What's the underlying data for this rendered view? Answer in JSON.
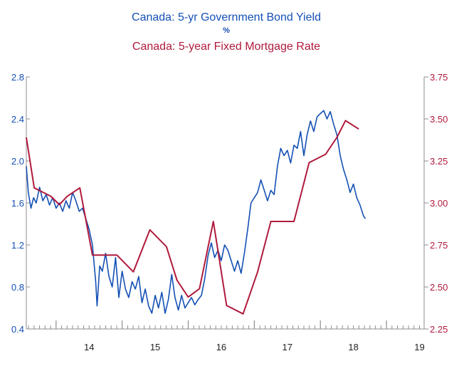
{
  "colors": {
    "bond": "#1450b4",
    "mortgage": "#b01a3c",
    "axis": "#8c8c8c",
    "x_tick_label": "#222222"
  },
  "chart_data": {
    "type": "line",
    "title": "Canada: 5-yr Government Bond Yield",
    "unit": "%",
    "subtitle": "Canada: 5-year Fixed Mortgage Rate",
    "grid": false,
    "x_axis": {
      "range": [
        2013.55,
        2019.57
      ],
      "ticks": [
        {
          "value": 2014.0,
          "label": "14"
        },
        {
          "value": 2015.0,
          "label": "15"
        },
        {
          "value": 2016.0,
          "label": "16"
        },
        {
          "value": 2017.0,
          "label": "17"
        },
        {
          "value": 2018.0,
          "label": "18"
        },
        {
          "value": 2019.0,
          "label": "19"
        }
      ],
      "year_boundaries": [
        2014,
        2015,
        2016,
        2017,
        2018,
        2019
      ]
    },
    "y_left": {
      "range": [
        0.4,
        2.8
      ],
      "ticks": [
        {
          "value": 0.4,
          "label": "0.4"
        },
        {
          "value": 0.8,
          "label": "0.8"
        },
        {
          "value": 1.2,
          "label": "1.2"
        },
        {
          "value": 1.6,
          "label": "1.6"
        },
        {
          "value": 2.0,
          "label": "2.0"
        },
        {
          "value": 2.4,
          "label": "2.4"
        },
        {
          "value": 2.8,
          "label": "2.8"
        }
      ]
    },
    "y_right": {
      "range": [
        2.25,
        3.75
      ],
      "ticks": [
        {
          "value": 2.25,
          "label": "2.25"
        },
        {
          "value": 2.5,
          "label": "2.50"
        },
        {
          "value": 2.75,
          "label": "2.75"
        },
        {
          "value": 3.0,
          "label": "3.00"
        },
        {
          "value": 3.25,
          "label": "3.25"
        },
        {
          "value": 3.5,
          "label": "3.50"
        },
        {
          "value": 3.75,
          "label": "3.75"
        }
      ]
    },
    "series": [
      {
        "name": "Canada: 5-yr Government Bond Yield",
        "axis": "left",
        "x": [
          2013.55,
          2013.58,
          2013.62,
          2013.66,
          2013.7,
          2013.75,
          2013.8,
          2013.85,
          2013.9,
          2013.95,
          2014.0,
          2014.05,
          2014.1,
          2014.15,
          2014.2,
          2014.25,
          2014.3,
          2014.35,
          2014.4,
          2014.45,
          2014.5,
          2014.55,
          2014.6,
          2014.62,
          2014.64,
          2014.66,
          2014.7,
          2014.75,
          2014.8,
          2014.85,
          2014.9,
          2014.95,
          2015.0,
          2015.05,
          2015.1,
          2015.15,
          2015.2,
          2015.25,
          2015.3,
          2015.35,
          2015.4,
          2015.45,
          2015.5,
          2015.55,
          2015.6,
          2015.65,
          2015.7,
          2015.75,
          2015.8,
          2015.85,
          2015.9,
          2015.95,
          2016.0,
          2016.05,
          2016.1,
          2016.15,
          2016.2,
          2016.25,
          2016.3,
          2016.35,
          2016.4,
          2016.45,
          2016.5,
          2016.55,
          2016.6,
          2016.65,
          2016.7,
          2016.75,
          2016.8,
          2016.85,
          2016.9,
          2016.95,
          2017.0,
          2017.05,
          2017.1,
          2017.15,
          2017.2,
          2017.25,
          2017.3,
          2017.35,
          2017.4,
          2017.45,
          2017.5,
          2017.55,
          2017.6,
          2017.65,
          2017.7,
          2017.75,
          2017.8,
          2017.85,
          2017.9,
          2017.95,
          2018.0,
          2018.05,
          2018.1,
          2018.15,
          2018.2,
          2018.25,
          2018.3,
          2018.35,
          2018.4,
          2018.45,
          2018.5,
          2018.55,
          2018.6,
          2018.65,
          2018.68
        ],
        "values": [
          1.95,
          1.7,
          1.55,
          1.65,
          1.6,
          1.75,
          1.62,
          1.68,
          1.58,
          1.65,
          1.55,
          1.6,
          1.52,
          1.62,
          1.55,
          1.7,
          1.62,
          1.52,
          1.55,
          1.45,
          1.35,
          1.2,
          0.85,
          0.62,
          0.8,
          1.0,
          0.95,
          1.12,
          0.9,
          0.8,
          1.08,
          0.7,
          0.95,
          0.78,
          0.7,
          0.85,
          0.78,
          0.9,
          0.65,
          0.78,
          0.62,
          0.55,
          0.72,
          0.6,
          0.75,
          0.55,
          0.68,
          0.92,
          0.7,
          0.58,
          0.72,
          0.6,
          0.65,
          0.7,
          0.63,
          0.68,
          0.72,
          0.88,
          1.1,
          1.22,
          1.08,
          1.15,
          1.05,
          1.2,
          1.15,
          1.05,
          0.95,
          1.05,
          0.93,
          1.12,
          1.35,
          1.6,
          1.65,
          1.7,
          1.82,
          1.72,
          1.62,
          1.72,
          1.68,
          1.95,
          2.12,
          2.05,
          2.1,
          1.98,
          2.15,
          2.12,
          2.28,
          2.05,
          2.25,
          2.38,
          2.28,
          2.42,
          2.45,
          2.48,
          2.4,
          2.47,
          2.35,
          2.25,
          2.05,
          1.92,
          1.82,
          1.7,
          1.78,
          1.65,
          1.58,
          1.48,
          1.45
        ]
      },
      {
        "name": "Canada: 5-year Fixed Mortgage Rate",
        "axis": "right",
        "x": [
          2013.55,
          2013.67,
          2013.92,
          2014.05,
          2014.17,
          2014.36,
          2014.55,
          2014.75,
          2014.92,
          2015.17,
          2015.42,
          2015.67,
          2015.83,
          2016.0,
          2016.17,
          2016.38,
          2016.58,
          2016.83,
          2017.05,
          2017.25,
          2017.4,
          2017.6,
          2017.83,
          2018.08,
          2018.25,
          2018.38,
          2018.58
        ],
        "values": [
          3.39,
          3.09,
          3.04,
          2.99,
          3.04,
          3.09,
          2.69,
          2.69,
          2.69,
          2.59,
          2.84,
          2.74,
          2.54,
          2.44,
          2.49,
          2.89,
          2.39,
          2.34,
          2.59,
          2.89,
          2.89,
          2.89,
          3.24,
          3.29,
          3.39,
          3.49,
          3.44
        ]
      }
    ]
  }
}
